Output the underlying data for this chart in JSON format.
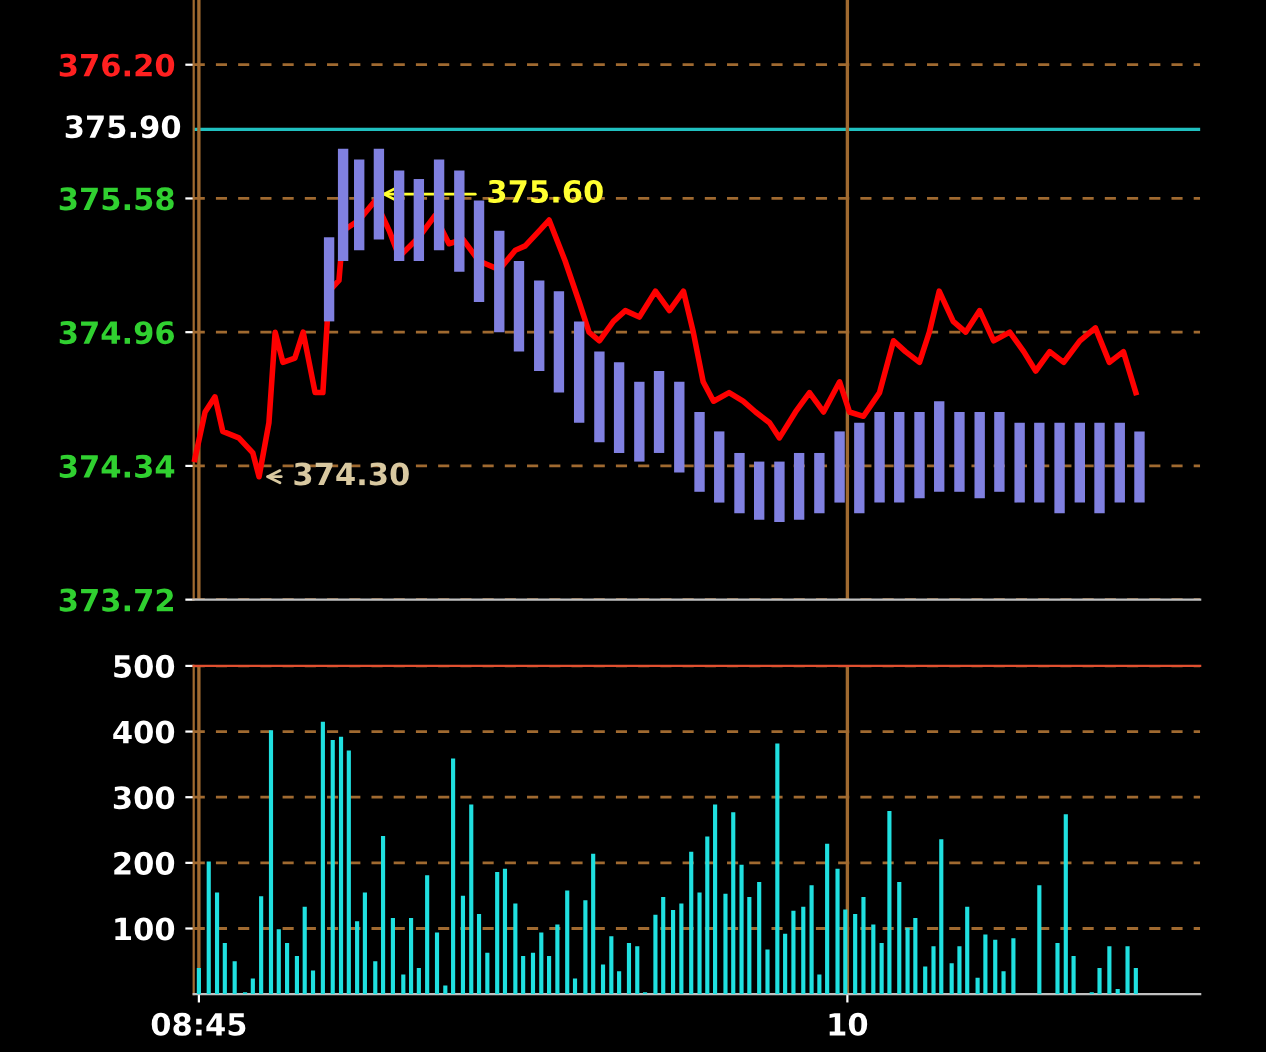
{
  "chart_data": [
    {
      "type": "line",
      "xlim": [
        8.74,
        10.68
      ],
      "ylim": [
        373.72,
        376.5
      ],
      "yticks": [
        {
          "value": 373.72,
          "label": "373.72"
        },
        {
          "value": 374.34,
          "label": "374.34"
        },
        {
          "value": 374.96,
          "label": "374.96"
        },
        {
          "value": 375.58,
          "label": "375.58"
        },
        {
          "value": 376.2,
          "label": "376.20"
        }
      ],
      "tick_labels": "y",
      "grid": "y",
      "ref_lines": [
        {
          "axis": "y",
          "value": 375.9,
          "label": "375.90",
          "color": "#20c0c0"
        },
        {
          "axis": "x",
          "value": 8.75,
          "color": "#a06a30"
        },
        {
          "axis": "x",
          "value": 10,
          "color": "#a06a30"
        }
      ],
      "annotations": [
        {
          "text": "375.60",
          "x": 9.09,
          "y": 375.6
        },
        {
          "text": "374.30",
          "x": 8.866,
          "y": 374.29
        }
      ],
      "series": [
        {
          "type": "bar",
          "color": "#8080e0",
          "x": [
            9.001,
            9.028,
            9.059,
            9.097,
            9.136,
            9.174,
            9.213,
            9.252,
            9.29,
            9.329,
            9.367,
            9.406,
            9.444,
            9.483,
            9.522,
            9.56,
            9.599,
            9.637,
            9.676,
            9.715,
            9.753,
            9.792,
            9.83,
            9.869,
            9.907,
            9.946,
            9.985,
            10.023,
            10.062,
            10.1,
            10.139,
            10.177,
            10.216,
            10.255,
            10.293,
            10.332,
            10.37,
            10.409,
            10.448,
            10.486,
            10.525,
            10.563
          ],
          "base": [
            375.01,
            375.29,
            375.34,
            375.39,
            375.29,
            375.29,
            375.34,
            375.24,
            375.1,
            374.96,
            374.87,
            374.78,
            374.68,
            374.54,
            374.45,
            374.4,
            374.36,
            374.4,
            374.31,
            374.22,
            374.17,
            374.12,
            374.09,
            374.08,
            374.09,
            374.12,
            374.17,
            374.12,
            374.17,
            374.17,
            374.19,
            374.22,
            374.22,
            374.19,
            374.22,
            374.17,
            374.17,
            374.12,
            374.17,
            374.12,
            374.17,
            374.17
          ],
          "values": [
            0.39,
            0.52,
            0.42,
            0.42,
            0.42,
            0.38,
            0.42,
            0.47,
            0.47,
            0.47,
            0.42,
            0.42,
            0.47,
            0.47,
            0.42,
            0.42,
            0.37,
            0.38,
            0.42,
            0.37,
            0.33,
            0.28,
            0.27,
            0.28,
            0.31,
            0.28,
            0.33,
            0.42,
            0.42,
            0.42,
            0.4,
            0.42,
            0.37,
            0.4,
            0.37,
            0.37,
            0.37,
            0.42,
            0.37,
            0.42,
            0.37,
            0.33
          ]
        },
        {
          "type": "line",
          "color": "#ff0000",
          "x": [
            8.742,
            8.762,
            8.781,
            8.796,
            8.827,
            8.854,
            8.866,
            8.885,
            8.897,
            8.912,
            8.935,
            8.951,
            8.974,
            8.989,
            9.001,
            9.02,
            9.028,
            9.059,
            9.09,
            9.117,
            9.136,
            9.174,
            9.205,
            9.232,
            9.259,
            9.29,
            9.329,
            9.36,
            9.379,
            9.406,
            9.425,
            9.456,
            9.483,
            9.502,
            9.522,
            9.549,
            9.572,
            9.599,
            9.63,
            9.657,
            9.684,
            9.703,
            9.722,
            9.742,
            9.772,
            9.799,
            9.823,
            9.85,
            9.869,
            9.9,
            9.927,
            9.954,
            9.985,
            10.004,
            10.031,
            10.062,
            10.089,
            10.112,
            10.139,
            10.158,
            10.177,
            10.204,
            10.228,
            10.255,
            10.282,
            10.313,
            10.34,
            10.363,
            10.39,
            10.417,
            10.448,
            10.478,
            10.505,
            10.532,
            10.556
          ],
          "values": [
            374.37,
            374.59,
            374.66,
            374.5,
            374.47,
            374.4,
            374.29,
            374.54,
            374.96,
            374.82,
            374.84,
            374.96,
            374.68,
            374.68,
            375.15,
            375.2,
            375.43,
            375.48,
            375.57,
            375.43,
            375.31,
            375.4,
            375.5,
            375.37,
            375.39,
            375.29,
            375.25,
            375.34,
            375.36,
            375.43,
            375.48,
            375.29,
            375.1,
            374.96,
            374.92,
            375.01,
            375.06,
            375.03,
            375.15,
            375.06,
            375.15,
            374.96,
            374.73,
            374.64,
            374.68,
            374.64,
            374.59,
            374.54,
            374.47,
            374.59,
            374.68,
            374.59,
            374.73,
            374.59,
            374.57,
            374.68,
            374.92,
            374.87,
            374.82,
            374.96,
            375.15,
            375.01,
            374.96,
            375.06,
            374.92,
            374.96,
            374.87,
            374.78,
            374.87,
            374.82,
            374.92,
            374.98,
            374.82,
            374.87,
            374.68
          ]
        }
      ]
    },
    {
      "type": "bar",
      "xlim": [
        8.74,
        10.68
      ],
      "ylim": [
        0,
        500
      ],
      "xticks": [
        {
          "value": 8.75,
          "label": "08:45"
        },
        {
          "value": 10,
          "label": "10"
        }
      ],
      "yticks": [
        100,
        200,
        300,
        400,
        500
      ],
      "grid": true,
      "color": "#20e0e0",
      "x": [
        8.75,
        8.769,
        8.785,
        8.8,
        8.819,
        8.839,
        8.854,
        8.87,
        8.889,
        8.904,
        8.92,
        8.939,
        8.954,
        8.97,
        8.989,
        9.008,
        9.024,
        9.039,
        9.055,
        9.07,
        9.09,
        9.105,
        9.124,
        9.144,
        9.159,
        9.174,
        9.19,
        9.209,
        9.225,
        9.24,
        9.259,
        9.275,
        9.29,
        9.306,
        9.325,
        9.34,
        9.36,
        9.375,
        9.394,
        9.41,
        9.425,
        9.441,
        9.46,
        9.475,
        9.495,
        9.51,
        9.529,
        9.545,
        9.56,
        9.579,
        9.595,
        9.61,
        9.63,
        9.645,
        9.664,
        9.68,
        9.699,
        9.715,
        9.73,
        9.745,
        9.765,
        9.78,
        9.796,
        9.811,
        9.83,
        9.846,
        9.865,
        9.88,
        9.896,
        9.915,
        9.931,
        9.946,
        9.961,
        9.981,
        9.996,
        10.015,
        10.031,
        10.05,
        10.066,
        10.081,
        10.1,
        10.116,
        10.131,
        10.15,
        10.166,
        10.181,
        10.201,
        10.216,
        10.231,
        10.251,
        10.266,
        10.285,
        10.301,
        10.32,
        10.37,
        10.405,
        10.421,
        10.436,
        10.471,
        10.486,
        10.505,
        10.521,
        10.54,
        10.556
      ],
      "values": [
        40,
        202,
        155,
        78,
        50,
        3,
        24,
        149,
        402,
        99,
        78,
        58,
        133,
        36,
        415,
        387,
        392,
        371,
        111,
        155,
        50,
        241,
        116,
        30,
        116,
        40,
        181,
        94,
        13,
        359,
        150,
        289,
        122,
        63,
        186,
        191,
        138,
        58,
        63,
        94,
        58,
        106,
        158,
        24,
        143,
        214,
        45,
        88,
        35,
        78,
        73,
        3,
        121,
        148,
        128,
        138,
        217,
        155,
        240,
        289,
        153,
        277,
        197,
        148,
        171,
        68,
        382,
        92,
        127,
        133,
        166,
        30,
        229,
        191,
        129,
        122,
        148,
        106,
        78,
        279,
        171,
        101,
        116,
        42,
        73,
        236,
        47,
        73,
        133,
        25,
        91,
        83,
        35,
        85,
        166,
        78,
        274,
        58,
        3,
        40,
        73,
        8,
        73,
        40
      ]
    }
  ]
}
